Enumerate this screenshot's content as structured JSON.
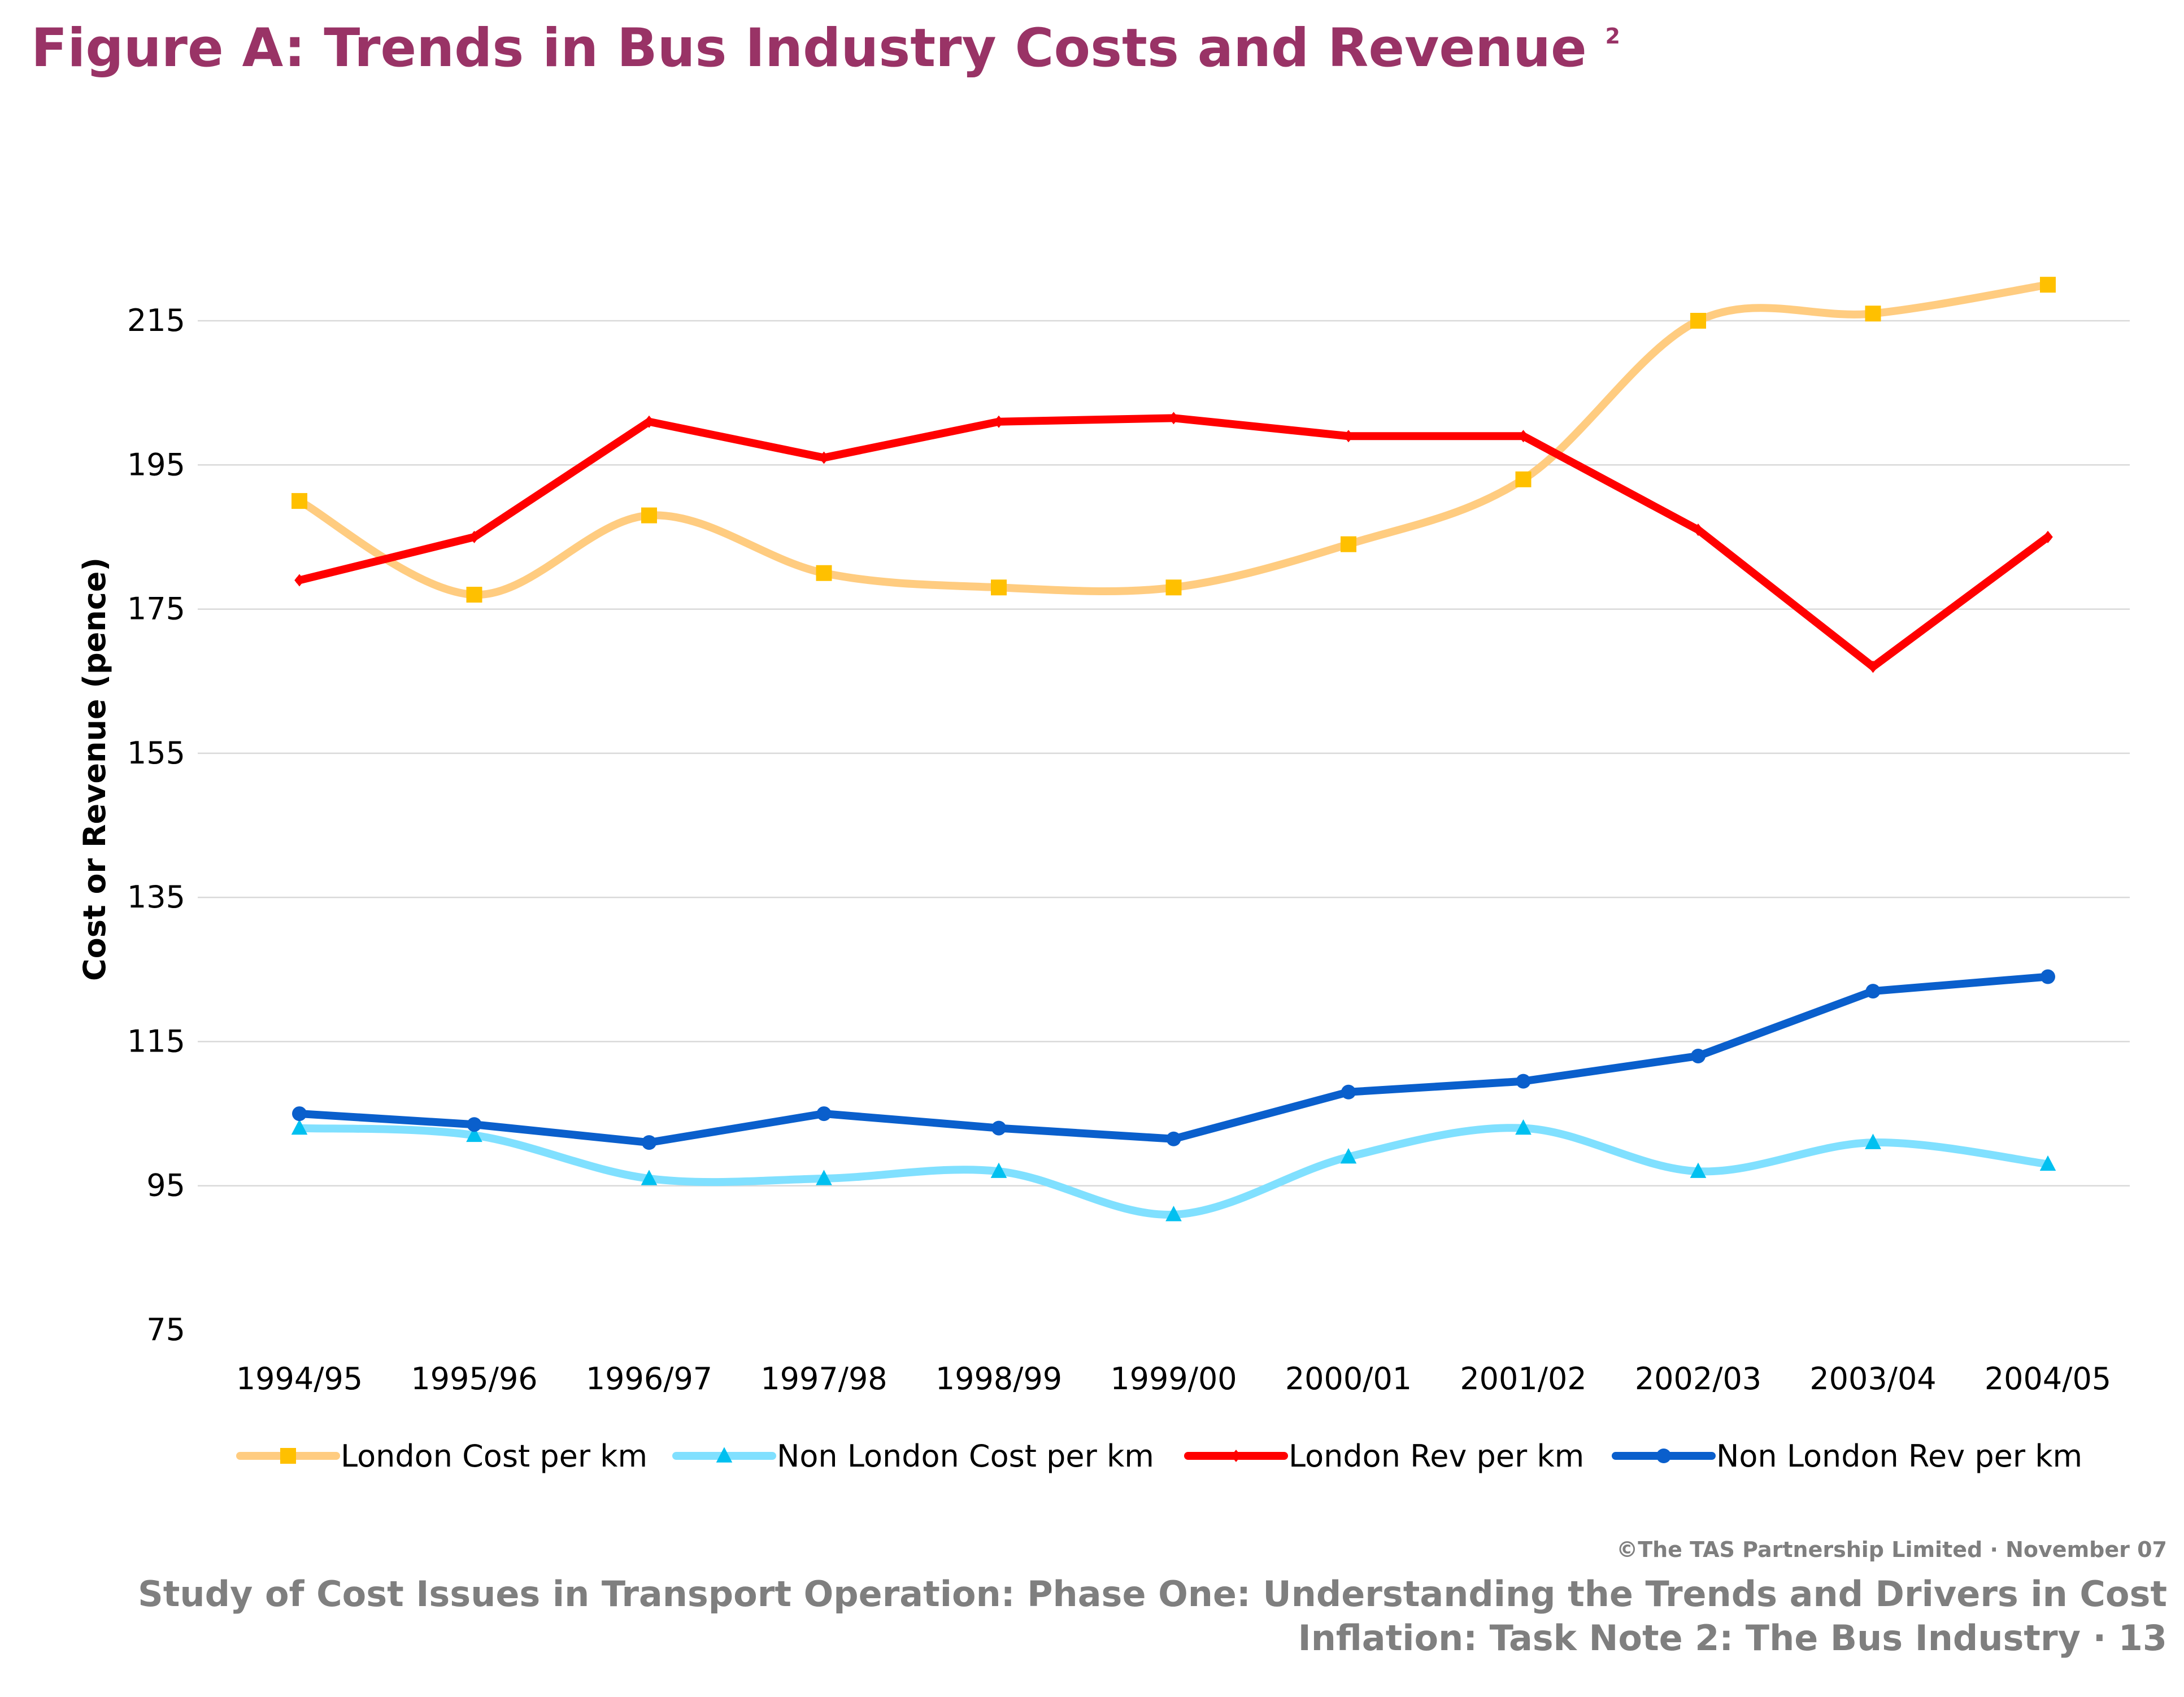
{
  "figure": {
    "title": "Figure A: Trends in Bus Industry Costs and Revenue",
    "title_superscript": "2",
    "title_color": "#993366"
  },
  "chart_data": {
    "type": "line",
    "title": "",
    "xlabel": "",
    "ylabel": "Cost or Revenue (pence)",
    "categories": [
      "1994/95",
      "1995/96",
      "1996/97",
      "1997/98",
      "1998/99",
      "1999/00",
      "2000/01",
      "2001/02",
      "2002/03",
      "2003/04",
      "2004/05"
    ],
    "ylim": [
      75,
      215
    ],
    "yticks": [
      75,
      95,
      115,
      135,
      155,
      175,
      195,
      215
    ],
    "grid": true,
    "legend_position": "bottom",
    "series": [
      {
        "name": "London Cost per km",
        "values": [
          190,
          177,
          188,
          180,
          178,
          178,
          184,
          193,
          215,
          216,
          220
        ],
        "line_color": "#FFCC80",
        "marker": "square",
        "marker_color": "#FFC000",
        "smooth": true
      },
      {
        "name": "Non London Cost per km",
        "values": [
          103,
          102,
          96,
          96,
          97,
          91,
          99,
          103,
          97,
          101,
          98
        ],
        "line_color": "#80E0FF",
        "marker": "triangle",
        "marker_color": "#00C0F0",
        "smooth": true
      },
      {
        "name": "London Rev per km",
        "values": [
          179,
          185,
          201,
          196,
          201,
          201.5,
          199,
          199,
          186,
          167,
          185
        ],
        "line_color": "#FF0000",
        "marker": "diamond",
        "marker_color": "#FF0000",
        "smooth": false
      },
      {
        "name": "Non London Rev per km",
        "values": [
          105,
          103.5,
          101,
          105,
          103,
          101.5,
          108,
          109.5,
          113,
          122,
          124
        ],
        "line_color": "#0A5FCC",
        "marker": "circle",
        "marker_color": "#0A5FCC",
        "smooth": false
      }
    ]
  },
  "footer": {
    "copyright": "©The TAS Partnership Limited · November 07",
    "line1": "Study of Cost Issues in Transport Operation: Phase One: Understanding the Trends and Drivers in Cost",
    "line2": "Inflation: Task Note 2: The Bus Industry · 13",
    "color": "#7F7F7F"
  }
}
